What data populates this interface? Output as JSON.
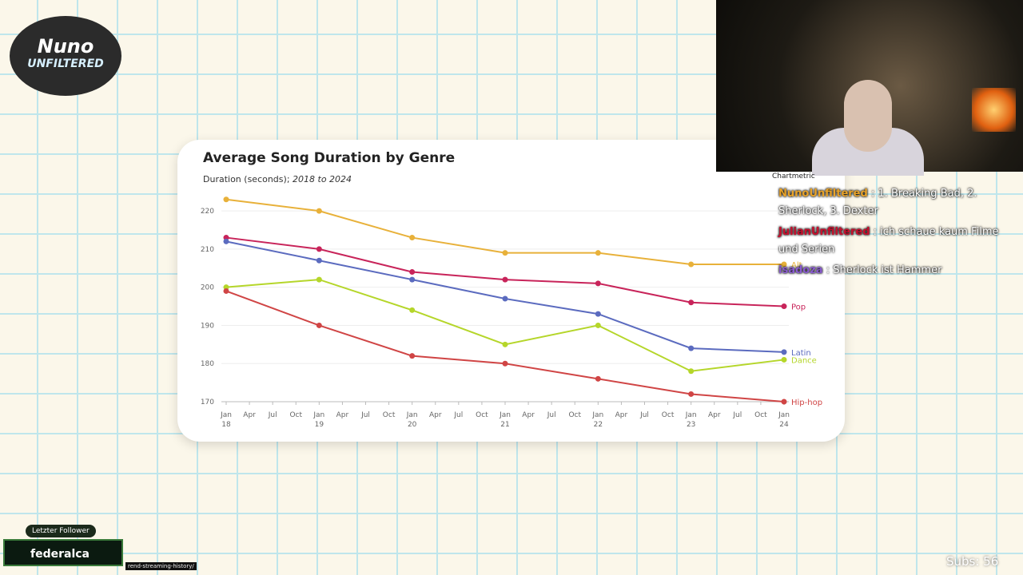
{
  "chart_data": {
    "type": "line",
    "title": "Average Song Duration by Genre",
    "subtitle": "Duration (seconds);",
    "subtitle_range": "2018 to 2024",
    "source": "Chartmetric",
    "x": [
      "2018-01",
      "2019-01",
      "2020-01",
      "2021-01",
      "2022-01",
      "2023-01",
      "2024-01"
    ],
    "xlim": [
      "2018-01",
      "2024-01"
    ],
    "xticks": [
      {
        "value": "2018-01",
        "label": "Jan"
      },
      {
        "value": "2018-04",
        "label": "Apr"
      },
      {
        "value": "2018-07",
        "label": "Jul"
      },
      {
        "value": "2018-10",
        "label": "Oct"
      },
      {
        "value": "2019-01",
        "label": "Jan"
      },
      {
        "value": "2019-04",
        "label": "Apr"
      },
      {
        "value": "2019-07",
        "label": "Jul"
      },
      {
        "value": "2019-10",
        "label": "Oct"
      },
      {
        "value": "2020-01",
        "label": "Jan"
      },
      {
        "value": "2020-04",
        "label": "Apr"
      },
      {
        "value": "2020-07",
        "label": "Jul"
      },
      {
        "value": "2020-10",
        "label": "Oct"
      },
      {
        "value": "2021-01",
        "label": "Jan"
      },
      {
        "value": "2021-04",
        "label": "Apr"
      },
      {
        "value": "2021-07",
        "label": "Jul"
      },
      {
        "value": "2021-10",
        "label": "Oct"
      },
      {
        "value": "2022-01",
        "label": "Jan"
      },
      {
        "value": "2022-04",
        "label": "Apr"
      },
      {
        "value": "2022-07",
        "label": "Jul"
      },
      {
        "value": "2022-10",
        "label": "Oct"
      },
      {
        "value": "2023-01",
        "label": "Jan"
      },
      {
        "value": "2023-04",
        "label": "Apr"
      },
      {
        "value": "2023-07",
        "label": "Jul"
      },
      {
        "value": "2023-10",
        "label": "Oct"
      },
      {
        "value": "2024-01",
        "label": "Jan"
      }
    ],
    "x_year_ticks": [
      {
        "value": "2018-01",
        "label": "18"
      },
      {
        "value": "2019-01",
        "label": "19"
      },
      {
        "value": "2020-01",
        "label": "20"
      },
      {
        "value": "2021-01",
        "label": "21"
      },
      {
        "value": "2022-01",
        "label": "22"
      },
      {
        "value": "2023-01",
        "label": "23"
      },
      {
        "value": "2024-01",
        "label": "24"
      }
    ],
    "ylim": [
      170,
      224
    ],
    "yticks": [
      170,
      180,
      190,
      200,
      210,
      220
    ],
    "grid": true,
    "series": [
      {
        "name": "Alt",
        "color": "#e8b13a",
        "values": [
          223,
          220,
          213,
          209,
          209,
          206,
          206
        ]
      },
      {
        "name": "Pop",
        "color": "#c8245a",
        "values": [
          213,
          210,
          204,
          202,
          201,
          196,
          195
        ]
      },
      {
        "name": "Latin",
        "color": "#5b6bbf",
        "values": [
          212,
          207,
          202,
          197,
          193,
          184,
          183
        ]
      },
      {
        "name": "Dance",
        "color": "#b5d62a",
        "values": [
          200,
          202,
          194,
          185,
          190,
          178,
          181
        ]
      },
      {
        "name": "Hip-hop",
        "color": "#d04545",
        "values": [
          199,
          190,
          182,
          180,
          176,
          172,
          170
        ]
      }
    ]
  },
  "overlay": {
    "logo": [
      "Nuno",
      "UNFILTERED"
    ],
    "chat": [
      {
        "user": "NunoUnfiltered",
        "text": ": 1. Breaking Bad, 2. Sherlock, 3. Dexter"
      },
      {
        "user": "JulianUnfiltered",
        "text": ": ich schaue kaum Filme und Serien"
      },
      {
        "user": "isadoza",
        "text": ": Sherlock ist Hammer"
      }
    ],
    "follower_label": "Letzter Follower",
    "follower": "federalca",
    "url": "rend-streaming-history/",
    "subs": "Subs: 56"
  }
}
